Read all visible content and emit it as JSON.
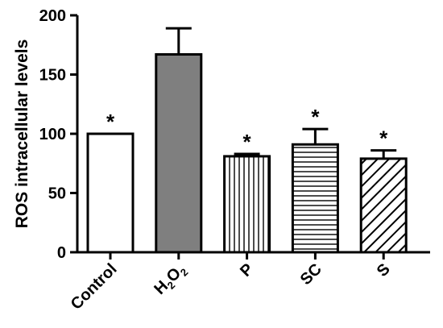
{
  "chart_data": {
    "type": "bar",
    "title": "",
    "xlabel": "",
    "ylabel": "ROS intracellular levels",
    "ylim": [
      0,
      200
    ],
    "yticks": [
      0,
      50,
      100,
      150,
      200
    ],
    "grid": false,
    "legend": "none",
    "categories": [
      "Control",
      "H2O2",
      "P",
      "SC",
      "S"
    ],
    "category_labels": [
      {
        "parts": [
          {
            "t": "Control"
          }
        ]
      },
      {
        "parts": [
          {
            "t": "H"
          },
          {
            "t": "2",
            "sub": true
          },
          {
            "t": "O"
          },
          {
            "t": "2",
            "sub": true
          }
        ]
      },
      {
        "parts": [
          {
            "t": "P"
          }
        ]
      },
      {
        "parts": [
          {
            "t": "SC"
          }
        ]
      },
      {
        "parts": [
          {
            "t": "S"
          }
        ]
      }
    ],
    "values": [
      100,
      167,
      81,
      91,
      79
    ],
    "errors": [
      0,
      22,
      2,
      13,
      7
    ],
    "significance": [
      "*",
      "",
      "*",
      "*",
      "*"
    ],
    "fills": [
      "white",
      "gray",
      "vertical-lines",
      "horizontal-lines",
      "diagonal-lines"
    ],
    "colors": {
      "stroke": "#000000",
      "gray": "#7f7f7f",
      "background": "#ffffff"
    }
  }
}
